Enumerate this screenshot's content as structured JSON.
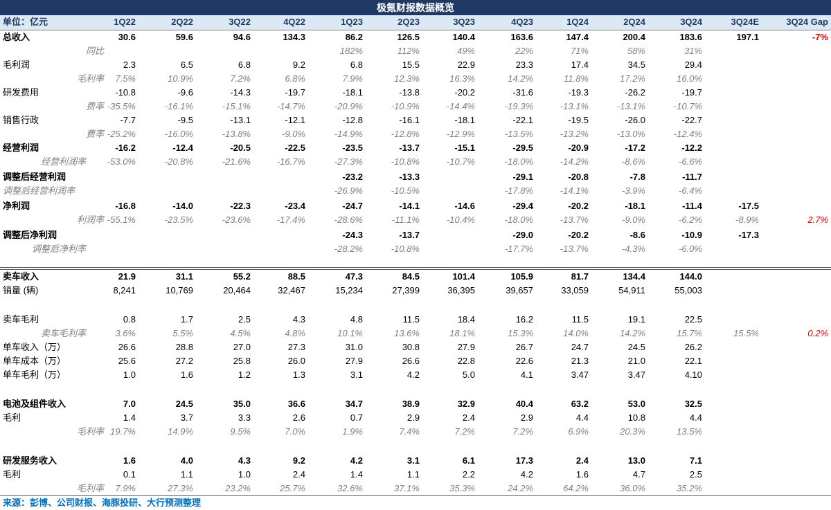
{
  "title": "极氪财报数据概览",
  "header": [
    "单位：亿元",
    "1Q22",
    "2Q22",
    "3Q22",
    "4Q22",
    "1Q23",
    "2Q23",
    "3Q23",
    "4Q23",
    "1Q24",
    "2Q24",
    "3Q24",
    "3Q24E",
    "3Q24 Gap"
  ],
  "rows": [
    {
      "label": "总收入",
      "style": "bold",
      "vals": [
        "30.6",
        "59.6",
        "94.6",
        "134.3",
        "86.2",
        "126.5",
        "140.4",
        "163.6",
        "147.4",
        "200.4",
        "183.6",
        "197.1",
        "-7%"
      ],
      "red": [
        12
      ]
    },
    {
      "label": "同比",
      "style": "ital",
      "vals": [
        "",
        "",
        "",
        "",
        "182%",
        "112%",
        "49%",
        "22%",
        "71%",
        "58%",
        "31%",
        "",
        ""
      ]
    },
    {
      "label": "毛利润",
      "style": "",
      "vals": [
        "2.3",
        "6.5",
        "6.8",
        "9.2",
        "6.8",
        "15.5",
        "22.9",
        "23.3",
        "17.4",
        "34.5",
        "29.4",
        "",
        ""
      ]
    },
    {
      "label": "毛利率",
      "style": "ital",
      "vals": [
        "7.5%",
        "10.9%",
        "7.2%",
        "6.8%",
        "7.9%",
        "12.3%",
        "16.3%",
        "14.2%",
        "11.8%",
        "17.2%",
        "16.0%",
        "",
        ""
      ]
    },
    {
      "label": "研发费用",
      "style": "",
      "vals": [
        "-10.8",
        "-9.6",
        "-14.3",
        "-19.7",
        "-18.1",
        "-13.8",
        "-20.2",
        "-31.6",
        "-19.3",
        "-26.2",
        "-19.7",
        "",
        ""
      ]
    },
    {
      "label": "费率",
      "style": "ital",
      "vals": [
        "-35.5%",
        "-16.1%",
        "-15.1%",
        "-14.7%",
        "-20.9%",
        "-10.9%",
        "-14.4%",
        "-19.3%",
        "-13.1%",
        "-13.1%",
        "-10.7%",
        "",
        ""
      ]
    },
    {
      "label": "销售行政",
      "style": "",
      "vals": [
        "-7.7",
        "-9.5",
        "-13.1",
        "-12.1",
        "-12.8",
        "-16.1",
        "-18.1",
        "-22.1",
        "-19.5",
        "-26.0",
        "-22.7",
        "",
        ""
      ]
    },
    {
      "label": "费率",
      "style": "ital",
      "vals": [
        "-25.2%",
        "-16.0%",
        "-13.8%",
        "-9.0%",
        "-14.9%",
        "-12.8%",
        "-12.9%",
        "-13.5%",
        "-13.2%",
        "-13.0%",
        "-12.4%",
        "",
        ""
      ]
    },
    {
      "label": "经营利润",
      "style": "bold",
      "vals": [
        "-16.2",
        "-12.4",
        "-20.5",
        "-22.5",
        "-23.5",
        "-13.7",
        "-15.1",
        "-29.5",
        "-20.9",
        "-17.2",
        "-12.2",
        "",
        ""
      ]
    },
    {
      "label": "经营利润率",
      "style": "ital",
      "vals": [
        "-53.0%",
        "-20.8%",
        "-21.6%",
        "-16.7%",
        "-27.3%",
        "-10.8%",
        "-10.7%",
        "-18.0%",
        "-14.2%",
        "-8.6%",
        "-6.6%",
        "",
        ""
      ]
    },
    {
      "label": "调整后经营利润",
      "style": "bold",
      "vals": [
        "",
        "",
        "",
        "",
        "-23.2",
        "-13.3",
        "",
        "-29.1",
        "-20.8",
        "-7.8",
        "-11.7",
        "",
        ""
      ]
    },
    {
      "label": "调整后经营利润率",
      "style": "ital",
      "vals": [
        "",
        "",
        "",
        "",
        "-26.9%",
        "-10.5%",
        "",
        "-17.8%",
        "-14.1%",
        "-3.9%",
        "-6.4%",
        "",
        ""
      ]
    },
    {
      "label": "净利润",
      "style": "bold",
      "vals": [
        "-16.8",
        "-14.0",
        "-22.3",
        "-23.4",
        "-24.7",
        "-14.1",
        "-14.6",
        "-29.4",
        "-20.2",
        "-18.1",
        "-11.4",
        "-17.5",
        ""
      ]
    },
    {
      "label": "利润率",
      "style": "ital",
      "vals": [
        "-55.1%",
        "-23.5%",
        "-23.6%",
        "-17.4%",
        "-28.6%",
        "-11.1%",
        "-10.4%",
        "-18.0%",
        "-13.7%",
        "-9.0%",
        "-6.2%",
        "-8.9%",
        "2.7%"
      ],
      "red": [
        12
      ]
    },
    {
      "label": "调整后净利润",
      "style": "bold",
      "vals": [
        "",
        "",
        "",
        "",
        "-24.3",
        "-13.7",
        "",
        "-29.0",
        "-20.2",
        "-8.6",
        "-10.9",
        "-17.3",
        ""
      ]
    },
    {
      "label": "调整后净利率",
      "style": "ital",
      "vals": [
        "",
        "",
        "",
        "",
        "-28.2%",
        "-10.8%",
        "",
        "-17.7%",
        "-13.7%",
        "-4.3%",
        "-6.0%",
        "",
        ""
      ]
    },
    {
      "label": "卖车收入",
      "style": "bold",
      "vals": [
        "21.9",
        "31.1",
        "55.2",
        "88.5",
        "47.3",
        "84.5",
        "101.4",
        "105.9",
        "81.7",
        "134.4",
        "144.0",
        "",
        ""
      ]
    },
    {
      "label": "销量 (辆)",
      "style": "",
      "vals": [
        "8,241",
        "10,769",
        "20,464",
        "32,467",
        "15,234",
        "27,399",
        "36,395",
        "39,657",
        "33,059",
        "54,911",
        "55,003",
        "",
        ""
      ]
    },
    {
      "label": "卖车毛利",
      "style": "",
      "vals": [
        "0.8",
        "1.7",
        "2.5",
        "4.3",
        "4.8",
        "11.5",
        "18.4",
        "16.2",
        "11.5",
        "19.1",
        "22.5",
        "",
        ""
      ]
    },
    {
      "label": "卖车毛利率",
      "style": "ital",
      "vals": [
        "3.6%",
        "5.5%",
        "4.5%",
        "4.8%",
        "10.1%",
        "13.6%",
        "18.1%",
        "15.3%",
        "14.0%",
        "14.2%",
        "15.7%",
        "15.5%",
        "0.2%"
      ],
      "red": [
        12
      ]
    },
    {
      "label": "单车收入（万）",
      "style": "",
      "vals": [
        "26.6",
        "28.8",
        "27.0",
        "27.3",
        "31.0",
        "30.8",
        "27.9",
        "26.7",
        "24.7",
        "24.5",
        "26.2",
        "",
        ""
      ]
    },
    {
      "label": "单车成本（万）",
      "style": "",
      "vals": [
        "25.6",
        "27.2",
        "25.8",
        "26.0",
        "27.9",
        "26.6",
        "22.8",
        "22.6",
        "21.3",
        "21.0",
        "22.1",
        "",
        ""
      ]
    },
    {
      "label": "单车毛利（万）",
      "style": "",
      "vals": [
        "1.0",
        "1.6",
        "1.2",
        "1.3",
        "3.1",
        "4.2",
        "5.0",
        "4.1",
        "3.47",
        "3.47",
        "4.10",
        "",
        ""
      ]
    },
    {
      "label": "电池及组件收入",
      "style": "bold",
      "vals": [
        "7.0",
        "24.5",
        "35.0",
        "36.6",
        "34.7",
        "38.9",
        "32.9",
        "40.4",
        "63.2",
        "53.0",
        "32.5",
        "",
        ""
      ]
    },
    {
      "label": "毛利",
      "style": "",
      "vals": [
        "1.4",
        "3.7",
        "3.3",
        "2.6",
        "0.7",
        "2.9",
        "2.4",
        "2.9",
        "4.4",
        "10.8",
        "4.4",
        "",
        ""
      ]
    },
    {
      "label": "毛利率",
      "style": "ital",
      "vals": [
        "19.7%",
        "14.9%",
        "9.5%",
        "7.0%",
        "1.9%",
        "7.4%",
        "7.2%",
        "7.2%",
        "6.9%",
        "20.3%",
        "13.5%",
        "",
        ""
      ]
    },
    {
      "label": "研发服务收入",
      "style": "bold",
      "vals": [
        "1.6",
        "4.0",
        "4.3",
        "9.2",
        "4.2",
        "3.1",
        "6.1",
        "17.3",
        "2.4",
        "13.0",
        "7.1",
        "",
        ""
      ]
    },
    {
      "label": "毛利",
      "style": "",
      "vals": [
        "0.1",
        "1.1",
        "1.0",
        "2.4",
        "1.4",
        "1.1",
        "2.2",
        "4.2",
        "1.6",
        "4.7",
        "2.5",
        "",
        ""
      ]
    },
    {
      "label": "毛利率",
      "style": "ital",
      "vals": [
        "7.9%",
        "27.3%",
        "23.2%",
        "25.7%",
        "32.6%",
        "37.1%",
        "35.3%",
        "24.2%",
        "64.2%",
        "36.0%",
        "35.2%",
        "",
        ""
      ]
    }
  ],
  "footer": "来源：彭博、公司财报、海豚投研、大行预测整理"
}
